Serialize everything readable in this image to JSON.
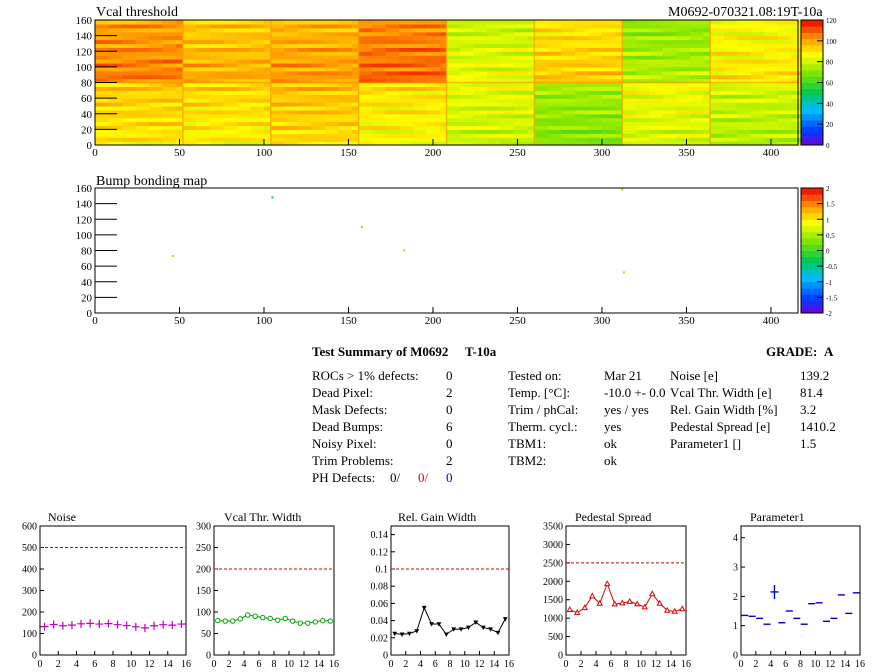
{
  "header": {
    "title_left": "Vcal threshold",
    "title_right": "M0692-070321.08:19T-10a"
  },
  "bump": {
    "title": "Bump bonding map"
  },
  "map_x_ticks": [
    0,
    50,
    100,
    150,
    200,
    250,
    300,
    350,
    400
  ],
  "map_y_ticks": [
    0,
    20,
    40,
    60,
    80,
    100,
    120,
    140,
    160
  ],
  "vcal_palette_ticks": [
    "0",
    "20",
    "40",
    "60",
    "80",
    "100",
    "120"
  ],
  "bump_palette_ticks": [
    "-2",
    "-1.5",
    "-1",
    "-0.5",
    "0",
    "0.5",
    "1",
    "1.5",
    "2"
  ],
  "summary": {
    "title": "Test Summary of M0692",
    "code": "T-10a",
    "grade_label": "GRADE:",
    "grade": "A",
    "defects": [
      {
        "label": "ROCs > 1% defects:",
        "value": "0"
      },
      {
        "label": "Dead Pixel:",
        "value": "2"
      },
      {
        "label": "Mask Defects:",
        "value": "0"
      },
      {
        "label": "Dead Bumps:",
        "value": "6"
      },
      {
        "label": "Noisy Pixel:",
        "value": "0"
      },
      {
        "label": "Trim Problems:",
        "value": "2"
      }
    ],
    "ph_label": "PH Defects:",
    "ph_values": [
      "0/",
      "0/",
      "0"
    ],
    "conditions": [
      {
        "label": "Tested on:",
        "value": "Mar 21"
      },
      {
        "label": "Temp. [°C]:",
        "value": "-10.0 +- 0.0"
      },
      {
        "label": "Trim / phCal:",
        "value": "yes / yes"
      },
      {
        "label": "Therm. cycl.:",
        "value": "yes"
      },
      {
        "label": "TBM1:",
        "value": "ok"
      },
      {
        "label": "TBM2:",
        "value": "ok"
      }
    ],
    "results": [
      {
        "label": "Noise [e]",
        "value": "139.2"
      },
      {
        "label": "Vcal Thr. Width [e]",
        "value": "81.4"
      },
      {
        "label": "Rel. Gain Width [%]",
        "value": "3.2"
      },
      {
        "label": "Pedestal Spread [e]",
        "value": "1410.2"
      },
      {
        "label": "Parameter1 []",
        "value": "1.5"
      }
    ]
  },
  "chart_data": [
    {
      "type": "heatmap",
      "title": "Vcal threshold",
      "xlim": [
        0,
        416
      ],
      "ylim": [
        0,
        160
      ],
      "color_scale": [
        0,
        130
      ],
      "roc_means_top": [
        112,
        105,
        108,
        115,
        88,
        100,
        80,
        95
      ],
      "roc_means_bottom": [
        100,
        98,
        102,
        96,
        88,
        78,
        90,
        85
      ]
    },
    {
      "type": "heatmap",
      "title": "Bump bonding map",
      "xlim": [
        0,
        416
      ],
      "ylim": [
        0,
        160
      ],
      "color_scale": [
        -2,
        2
      ],
      "points": [
        [
          105,
          148,
          -0.5
        ],
        [
          158,
          110,
          0.3
        ],
        [
          183,
          80,
          0.4
        ],
        [
          46,
          73,
          0.4
        ],
        [
          312,
          158,
          0.4
        ],
        [
          313,
          52,
          0.5
        ]
      ]
    },
    {
      "type": "scatter",
      "title": "Noise",
      "xlim": [
        0,
        16
      ],
      "ylim": [
        0,
        600
      ],
      "yticks": [
        0,
        100,
        200,
        300,
        400,
        500,
        600
      ],
      "ref": 500,
      "color": "#c000c0",
      "marker": "cross",
      "x": [
        0,
        1,
        2,
        3,
        4,
        5,
        6,
        7,
        8,
        9,
        10,
        11,
        12,
        13,
        14,
        15
      ],
      "values": [
        132,
        142,
        136,
        139,
        145,
        147,
        144,
        146,
        141,
        137,
        131,
        126,
        136,
        141,
        139,
        144
      ]
    },
    {
      "type": "line",
      "title": "Vcal Thr. Width",
      "xlim": [
        0,
        16
      ],
      "ylim": [
        0,
        300
      ],
      "yticks": [
        0,
        50,
        100,
        150,
        200,
        250,
        300
      ],
      "ref": 200,
      "color": "#00a000",
      "marker": "circle",
      "x": [
        0,
        1,
        2,
        3,
        4,
        5,
        6,
        7,
        8,
        9,
        10,
        11,
        12,
        13,
        14,
        15
      ],
      "values": [
        80,
        79,
        79,
        84,
        93,
        90,
        87,
        85,
        81,
        85,
        79,
        74,
        74,
        77,
        80,
        79
      ]
    },
    {
      "type": "line",
      "title": "Rel. Gain Width",
      "xlim": [
        0,
        16
      ],
      "ylim": [
        0,
        0.15
      ],
      "yticks": [
        0,
        0.02,
        0.04,
        0.06,
        0.08,
        0.1,
        0.12,
        0.14
      ],
      "ref": 0.1,
      "color": "#000000",
      "marker": "triangle-down",
      "x": [
        0,
        1,
        2,
        3,
        4,
        5,
        6,
        7,
        8,
        9,
        10,
        11,
        12,
        13,
        14,
        15
      ],
      "values": [
        0.025,
        0.024,
        0.025,
        0.028,
        0.055,
        0.036,
        0.036,
        0.024,
        0.03,
        0.03,
        0.032,
        0.038,
        0.032,
        0.03,
        0.026,
        0.042
      ]
    },
    {
      "type": "line",
      "title": "Pedestal Spread",
      "xlim": [
        0,
        16
      ],
      "ylim": [
        0,
        3500
      ],
      "yticks": [
        0,
        500,
        1000,
        1500,
        2000,
        2500,
        3000,
        3500
      ],
      "ref": 2500,
      "color": "#e00000",
      "marker": "triangle-up",
      "x": [
        0,
        1,
        2,
        3,
        4,
        5,
        6,
        7,
        8,
        9,
        10,
        11,
        12,
        13,
        14,
        15
      ],
      "values": [
        1230,
        1150,
        1280,
        1600,
        1400,
        1930,
        1380,
        1410,
        1450,
        1380,
        1300,
        1660,
        1400,
        1210,
        1180,
        1250
      ]
    },
    {
      "type": "scatter",
      "title": "Parameter1",
      "xlim": [
        0,
        16
      ],
      "ylim": [
        0,
        4.4
      ],
      "yticks": [
        0,
        1,
        2,
        3,
        4
      ],
      "color": "#0000cc",
      "marker": "hbar",
      "x": [
        0,
        1,
        2,
        3,
        4,
        5,
        6,
        7,
        8,
        9,
        10,
        11,
        12,
        13,
        14,
        15
      ],
      "values": [
        1.35,
        1.32,
        1.25,
        1.05,
        2.15,
        1.1,
        1.5,
        1.25,
        1.05,
        1.75,
        1.78,
        1.15,
        1.25,
        2.05,
        1.42,
        2.12
      ]
    }
  ]
}
